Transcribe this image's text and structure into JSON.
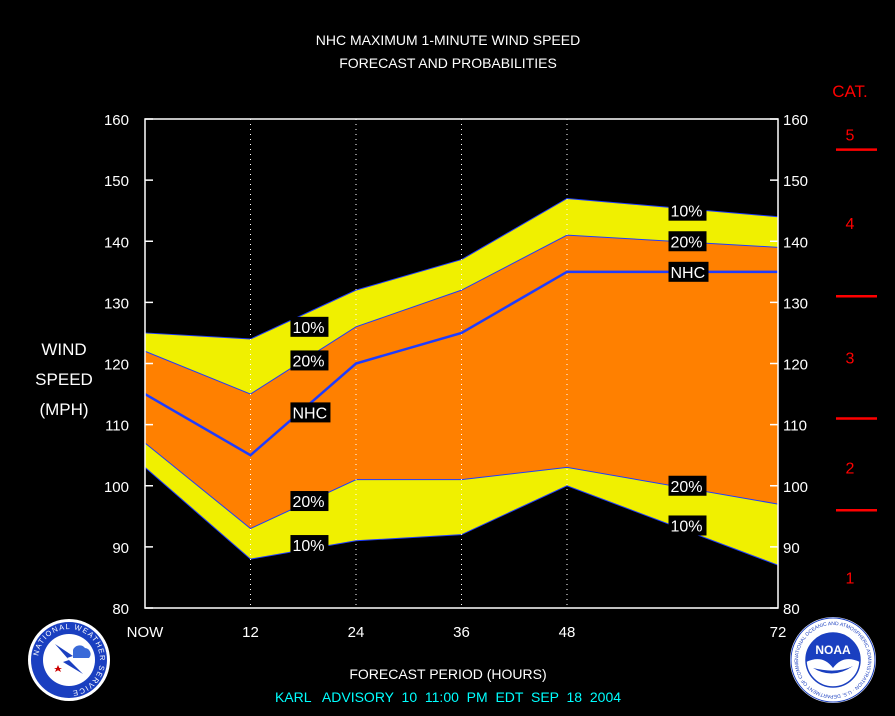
{
  "chart_data": {
    "type": "area",
    "title_line1": "NHC MAXIMUM 1-MINUTE WIND SPEED",
    "title_line2": "FORECAST AND PROBABILITIES",
    "ylabel_lines": [
      "WIND",
      "SPEED",
      "(MPH)"
    ],
    "xlabel": "FORECAST PERIOD (HOURS)",
    "footer": "KARL   ADVISORY  10  11:00  PM  EDT  SEP  18  2004",
    "ylim": [
      80,
      160
    ],
    "y_ticks": [
      80,
      90,
      100,
      110,
      120,
      130,
      140,
      150,
      160
    ],
    "xlim": [
      0,
      72
    ],
    "x_ticks": [
      {
        "x": 0,
        "label": "NOW"
      },
      {
        "x": 12,
        "label": "12"
      },
      {
        "x": 24,
        "label": "24"
      },
      {
        "x": 36,
        "label": "36"
      },
      {
        "x": 48,
        "label": "48"
      },
      {
        "x": 72,
        "label": "72"
      }
    ],
    "x": [
      0,
      12,
      24,
      36,
      48,
      72
    ],
    "series": [
      {
        "name": "10%",
        "values": [
          125,
          124,
          132,
          137,
          147,
          144
        ]
      },
      {
        "name": "20%",
        "values": [
          122,
          115,
          126,
          132,
          141,
          139
        ]
      },
      {
        "name": "NHC",
        "values": [
          115,
          105,
          120,
          125,
          135,
          135
        ]
      },
      {
        "name": "20%",
        "values": [
          107,
          93,
          101,
          101,
          103,
          97
        ]
      },
      {
        "name": "10%",
        "values": [
          103,
          88,
          91,
          92,
          100,
          87
        ]
      }
    ],
    "band_colors": {
      "outer": "#f0f000",
      "inner": "#ff8000",
      "nhc_line": "#1e3cff"
    },
    "labels": [
      {
        "text": "10%",
        "x": 17,
        "y": 126
      },
      {
        "text": "20%",
        "x": 17,
        "y": 120.5
      },
      {
        "text": "NHC",
        "x": 17,
        "y": 112
      },
      {
        "text": "20%",
        "x": 17,
        "y": 97.5
      },
      {
        "text": "10%",
        "x": 17,
        "y": 90.3
      },
      {
        "text": "10%",
        "x": 60,
        "y": 145
      },
      {
        "text": "20%",
        "x": 60,
        "y": 140
      },
      {
        "text": "NHC",
        "x": 60,
        "y": 135
      },
      {
        "text": "20%",
        "x": 60,
        "y": 100
      },
      {
        "text": "10%",
        "x": 60,
        "y": 93.5
      }
    ],
    "category_header": "CAT.",
    "category_boundaries": [
      96,
      111,
      131,
      155
    ],
    "categories": [
      {
        "label": "1",
        "y": 85
      },
      {
        "label": "2",
        "y": 103
      },
      {
        "label": "3",
        "y": 121
      },
      {
        "label": "4",
        "y": 143
      },
      {
        "label": "5",
        "y": 157.5
      }
    ]
  },
  "logos": {
    "left": "NATIONAL WEATHER SERVICE",
    "right_center": "NOAA",
    "right_ring": "NATIONAL OCEANIC AND ATMOSPHERIC ADMINISTRATION · U.S. DEPARTMENT OF COMMERCE"
  }
}
